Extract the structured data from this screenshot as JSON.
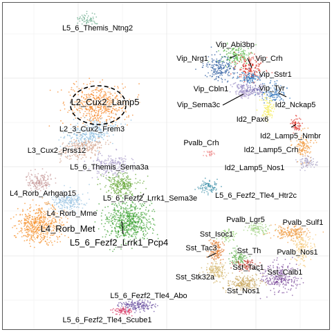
{
  "chart_data": {
    "type": "scatter",
    "title": "",
    "xlabel": "",
    "ylabel": "",
    "grid": true,
    "legend": "none",
    "clusters": [
      {
        "label": "L5_6_Themis_Ntng2",
        "color": "#6aab8c"
      },
      {
        "label": "Vip_Abi3bp",
        "color": "#5cb94c"
      },
      {
        "label": "Vip_Nrg1",
        "color": "#2f5ea0"
      },
      {
        "label": "Vip_Crh",
        "color": "#d9382e"
      },
      {
        "label": "Vip_Sstr1",
        "color": "#3b7dbf"
      },
      {
        "label": "Vip_Cbln1",
        "color": "#9b8fc7"
      },
      {
        "label": "Vip_Tyr",
        "color": "#7a6fb3"
      },
      {
        "label": "Vip_Sema3c",
        "color": "#b8a9d4"
      },
      {
        "label": "Id2_Nckap5",
        "color": "#2b6fb8"
      },
      {
        "label": "Id2_Pax6",
        "color": "#f5ec55"
      },
      {
        "label": "Id2_Lamp5_Nmbr",
        "color": "#e03a30"
      },
      {
        "label": "Id2_Lamp5_Crh",
        "color": "#f29a3e"
      },
      {
        "label": "Id2_Lamp5_Nos1",
        "color": "#a9a3c6"
      },
      {
        "label": "Pvalb_Crh",
        "color": "#ef8a8a"
      },
      {
        "label": "L2_Cux2_Lamp5",
        "color": "#f5892c"
      },
      {
        "label": "L2_3_Cux2_Frem3",
        "color": "#8fbfe0"
      },
      {
        "label": "L3_Cux2_Prss12",
        "color": "#d4a58f"
      },
      {
        "label": "L5_6_Themis_Sema3a",
        "color": "#a99cc9"
      },
      {
        "label": "L4_Rorb_Arhgap15",
        "color": "#c79b9b"
      },
      {
        "label": "L5_6_Fezf2_Lrrk1_Sema3e",
        "color": "#6aaa3c"
      },
      {
        "label": "L4_Rorb_Mme",
        "color": "#9ec5e3"
      },
      {
        "label": "L4_Rorb_Met",
        "color": "#f5922e"
      },
      {
        "label": "L5_6_Fezf2_Lrrk1_Pcp4",
        "color": "#3fa335"
      },
      {
        "label": "L5_6_Fezf2_Tle4_Htr2c",
        "color": "#3b8fa8"
      },
      {
        "label": "Pvalb_Lgr5",
        "color": "#a6d48a"
      },
      {
        "label": "Pvalb_Sulf1",
        "color": "#f0a04b"
      },
      {
        "label": "Pvalb_Nos1",
        "color": "#f5c97a"
      },
      {
        "label": "Sst_Isoc1",
        "color": "#8fd16c"
      },
      {
        "label": "Sst_Th",
        "color": "#5cae4a"
      },
      {
        "label": "Sst_Tac3",
        "color": "#e07a2c"
      },
      {
        "label": "Sst_Tac1",
        "color": "#c2392c"
      },
      {
        "label": "Sst_Calb1",
        "color": "#7f4f9e"
      },
      {
        "label": "Sst_Stk32a",
        "color": "#d6b870"
      },
      {
        "label": "Sst_Nos1",
        "color": "#c9a860"
      },
      {
        "label": "L5_6_Fezf2_Tle4_Abo",
        "color": "#6a4fa0"
      },
      {
        "label": "L5_6_Fezf2_Tle4_Scube1",
        "color": "#d93b66"
      }
    ]
  }
}
